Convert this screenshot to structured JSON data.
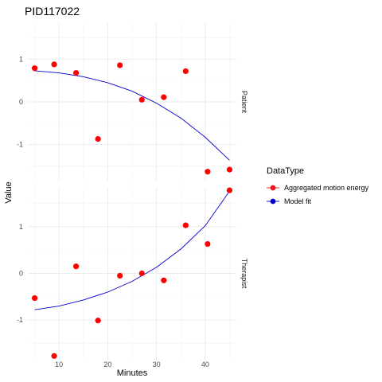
{
  "chart_data": {
    "type": "scatter",
    "title": "PID117022",
    "xlabel": "Minutes",
    "ylabel": "Value",
    "xlim": [
      3.6,
      46.4
    ],
    "x_ticks": [
      10,
      20,
      30,
      40
    ],
    "x_tick_labels": [
      "10",
      "20",
      "30",
      "40"
    ],
    "ylim": [
      -1.85,
      1.85
    ],
    "y_ticks": [
      -1,
      0,
      1
    ],
    "y_tick_labels": [
      "-1",
      "0",
      "1"
    ],
    "legend": {
      "title": "DataType",
      "position": "right",
      "entries": [
        {
          "label": "Aggregated motion energy",
          "color": "#e41a1c",
          "marker": "point"
        },
        {
          "label": "Model fit",
          "color": "#0000cc",
          "marker": "line"
        }
      ]
    },
    "facets": [
      {
        "label": "Patient",
        "points": {
          "x": [
            5,
            9,
            13.5,
            18,
            22.5,
            27,
            31.5,
            36,
            40.5,
            45
          ],
          "y": [
            0.79,
            0.88,
            0.68,
            -0.87,
            0.86,
            0.05,
            0.11,
            0.72,
            -1.64,
            -1.59
          ]
        },
        "fit": {
          "x": [
            5,
            10,
            15,
            20,
            25,
            30,
            35,
            40,
            45
          ],
          "y": [
            0.73,
            0.68,
            0.59,
            0.45,
            0.25,
            -0.03,
            -0.38,
            -0.83,
            -1.37
          ]
        }
      },
      {
        "label": "Therapist",
        "points": {
          "x": [
            5,
            9,
            13.5,
            18,
            22.5,
            27,
            31.5,
            36,
            40.5,
            45
          ],
          "y": [
            -0.53,
            -1.77,
            0.15,
            -1.01,
            -0.05,
            0.0,
            -0.15,
            1.03,
            0.63,
            1.78
          ]
        },
        "fit": {
          "x": [
            5,
            10,
            15,
            20,
            25,
            30,
            35,
            40,
            45
          ],
          "y": [
            -0.78,
            -0.7,
            -0.57,
            -0.4,
            -0.17,
            0.13,
            0.52,
            1.02,
            1.76
          ]
        }
      }
    ]
  }
}
